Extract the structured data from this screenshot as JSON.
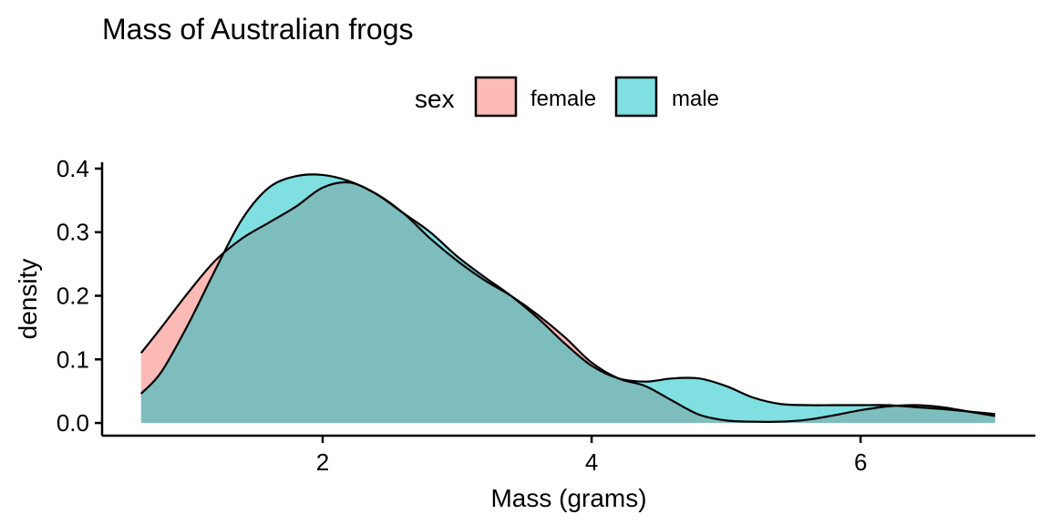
{
  "chart_data": {
    "type": "area",
    "title": "Mass of Australian frogs",
    "xlabel": "Mass (grams)",
    "ylabel": "density",
    "xlim": [
      0.36,
      7.3
    ],
    "ylim": [
      -0.02,
      0.41
    ],
    "xticks": [
      2,
      4,
      6
    ],
    "xtick_labels": [
      "2",
      "4",
      "6"
    ],
    "yticks": [
      0.0,
      0.1,
      0.2,
      0.3,
      0.4
    ],
    "ytick_labels": [
      "0.0",
      "0.1",
      "0.2",
      "0.3",
      "0.4"
    ],
    "grid": false,
    "legend": {
      "title": "sex",
      "placement": "top"
    },
    "series": [
      {
        "name": "female",
        "color": "#F8766D",
        "x": [
          0.65,
          0.8,
          1.0,
          1.2,
          1.4,
          1.6,
          1.8,
          2.0,
          2.2,
          2.4,
          2.6,
          2.8,
          3.0,
          3.2,
          3.4,
          3.6,
          3.8,
          4.0,
          4.2,
          4.4,
          4.6,
          4.8,
          5.0,
          5.2,
          5.4,
          5.6,
          5.8,
          6.0,
          6.2,
          6.4,
          6.6,
          6.8,
          7.0
        ],
        "y": [
          0.11,
          0.15,
          0.205,
          0.255,
          0.29,
          0.315,
          0.34,
          0.37,
          0.378,
          0.36,
          0.33,
          0.29,
          0.255,
          0.225,
          0.2,
          0.17,
          0.135,
          0.095,
          0.07,
          0.058,
          0.035,
          0.013,
          0.004,
          0.002,
          0.002,
          0.005,
          0.012,
          0.02,
          0.026,
          0.028,
          0.025,
          0.018,
          0.011
        ]
      },
      {
        "name": "male",
        "color": "#00BFC4",
        "x": [
          0.65,
          0.8,
          1.0,
          1.2,
          1.4,
          1.6,
          1.8,
          2.0,
          2.2,
          2.4,
          2.6,
          2.8,
          3.0,
          3.2,
          3.4,
          3.6,
          3.8,
          4.0,
          4.2,
          4.4,
          4.6,
          4.8,
          5.0,
          5.2,
          5.4,
          5.6,
          5.8,
          6.0,
          6.2,
          6.4,
          6.6,
          6.8,
          7.0
        ],
        "y": [
          0.046,
          0.08,
          0.155,
          0.24,
          0.32,
          0.37,
          0.388,
          0.39,
          0.38,
          0.36,
          0.33,
          0.3,
          0.262,
          0.23,
          0.2,
          0.165,
          0.125,
          0.09,
          0.07,
          0.065,
          0.07,
          0.07,
          0.058,
          0.04,
          0.03,
          0.028,
          0.028,
          0.028,
          0.028,
          0.025,
          0.022,
          0.018,
          0.014
        ]
      }
    ]
  }
}
